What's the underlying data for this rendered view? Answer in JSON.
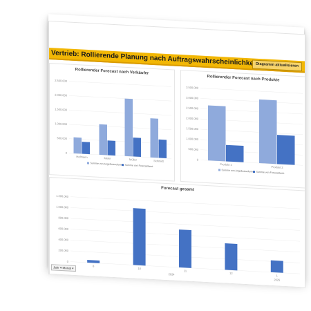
{
  "header": {
    "title": "Vertrieb: Rollierende Planung nach Auftragswahrscheinlichkeit",
    "refresh_button": "Diagramm aktualisieren"
  },
  "colors": {
    "accent": "#f2b705",
    "light_series": "#8faadc",
    "dark_series": "#4472c4"
  },
  "filter": {
    "label": "Jahr ▾ Monat ▾"
  },
  "chart_data": [
    {
      "type": "bar",
      "title": "Rollierender Forecast nach Verkäufer",
      "categories": [
        "Hofmann",
        "Meier",
        "Müller",
        "Schmidt"
      ],
      "series": [
        {
          "name": "Summe von Angebotsvolumen",
          "values": [
            560000,
            1060000,
            2000000,
            1360000
          ]
        },
        {
          "name": "Summe von Forecastwert",
          "values": [
            420000,
            510000,
            660000,
            640000
          ]
        }
      ],
      "ylim": [
        0,
        2500000
      ],
      "yticks": [
        "0",
        "500.000",
        "1.000.000",
        "1.500.000",
        "2.000.000",
        "2.500.000"
      ]
    },
    {
      "type": "bar",
      "title": "Rollierender Forecast nach Produkte",
      "categories": [
        "Produkt 1",
        "Produkt 2"
      ],
      "series": [
        {
          "name": "Summe von Angebotsvolumen",
          "values": [
            2680000,
            3100000
          ]
        },
        {
          "name": "Summe von Forecastwert",
          "values": [
            800000,
            1420000
          ]
        }
      ],
      "ylim": [
        0,
        3500000
      ],
      "yticks": [
        "0",
        "500.000",
        "1.000.000",
        "1.500.000",
        "2.000.000",
        "2.500.000",
        "3.000.000",
        "3.500.000"
      ]
    },
    {
      "type": "bar",
      "title": "Forecast gesamt",
      "categories": [
        "8",
        "10",
        "11",
        "12",
        "1"
      ],
      "series": [
        {
          "name": "Forecastwert",
          "values": [
            50000,
            1050000,
            700000,
            490000,
            220000
          ]
        }
      ],
      "ylim": [
        0,
        1200000
      ],
      "yticks": [
        "0",
        "200.000",
        "400.000",
        "600.000",
        "800.000",
        "1.000.000",
        "1.200.000"
      ],
      "year_labels": [
        "2024",
        "2025"
      ]
    }
  ]
}
